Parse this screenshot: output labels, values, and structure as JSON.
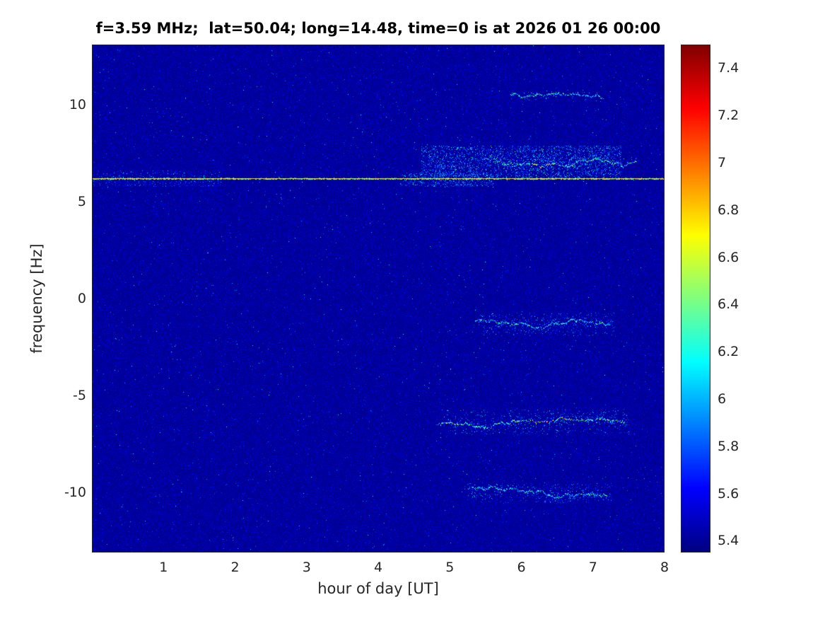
{
  "title": "f=3.59 MHz;  lat=50.04; long=14.48, time=0 is at 2026 01 26 00:00",
  "axes": {
    "xlabel": "hour of day [UT]",
    "ylabel": "frequency [Hz]",
    "x_ticks": [
      "1",
      "2",
      "3",
      "4",
      "5",
      "6",
      "7",
      "8"
    ],
    "y_ticks": [
      "10",
      "5",
      "0",
      "-5",
      "-10"
    ]
  },
  "colorbar": {
    "ticks": [
      "7.4",
      "7.2",
      "7",
      "6.8",
      "6.6",
      "6.4",
      "6.2",
      "6",
      "5.8",
      "5.6",
      "5.4"
    ],
    "colormap": "jet"
  },
  "chart_data": {
    "type": "heatmap",
    "title": "f=3.59 MHz;  lat=50.04; long=14.48, time=0 is at 2026 01 26 00:00",
    "xlabel": "hour of day [UT]",
    "ylabel": "frequency [Hz]",
    "xlim": [
      0,
      8
    ],
    "ylim": [
      -13.1,
      13.1
    ],
    "clim": [
      5.35,
      7.5
    ],
    "colormap": "jet",
    "colorbar_ticks": [
      5.4,
      5.6,
      5.8,
      6,
      6.2,
      6.4,
      6.6,
      6.8,
      7,
      7.2,
      7.4
    ],
    "noise_background": {
      "base_level": 5.37,
      "exp_mean": 0.05,
      "spike_prob": 0.004,
      "spike_min": 5.6,
      "spike_max": 6.35
    },
    "carrier_line": {
      "freq_hz": 6.2,
      "hour_start": 0,
      "hour_end": 8,
      "value_range": [
        6.5,
        6.85
      ]
    },
    "doppler_traces": [
      {
        "name": "upper-trace-10.5Hz",
        "hour_start": 5.85,
        "hour_end": 7.15,
        "freq_hz": 10.5,
        "wiggle_hz": 0.45,
        "value_range": [
          5.95,
          6.5
        ],
        "scatter": 0.35
      },
      {
        "name": "upper-trace-7Hz",
        "hour_start": 5.5,
        "hour_end": 7.6,
        "freq_hz": 7.0,
        "wiggle_hz": 0.55,
        "value_range": [
          5.95,
          6.6
        ],
        "scatter": 0.5,
        "hot_hours": [
          6.15,
          6.55
        ],
        "hot_value": 6.9
      },
      {
        "name": "lower-trace-minus1.3Hz",
        "hour_start": 5.35,
        "hour_end": 7.25,
        "freq_hz": -1.3,
        "wiggle_hz": 0.55,
        "value_range": [
          5.9,
          6.5
        ],
        "scatter": 0.4
      },
      {
        "name": "lower-trace-minus6.3Hz",
        "hour_start": 4.85,
        "hour_end": 7.45,
        "freq_hz": -6.3,
        "wiggle_hz": 0.55,
        "value_range": [
          6.0,
          6.75
        ],
        "scatter": 0.5,
        "hot_hours": [
          6.1,
          6.65
        ],
        "hot_value": 7.45
      },
      {
        "name": "lower-trace-minus10Hz",
        "hour_start": 5.25,
        "hour_end": 7.2,
        "freq_hz": -10.0,
        "wiggle_hz": 0.45,
        "value_range": [
          5.9,
          6.45
        ],
        "scatter": 0.4
      }
    ],
    "scatter_clouds": [
      {
        "hour_start": 4.6,
        "hour_end": 7.4,
        "freq_start": 6.2,
        "freq_end": 7.9,
        "count": 2400,
        "value_range": [
          5.7,
          6.55
        ]
      },
      {
        "hour_start": 0.0,
        "hour_end": 1.8,
        "freq_start": 5.8,
        "freq_end": 6.6,
        "count": 450,
        "value_range": [
          5.6,
          6.2
        ]
      },
      {
        "hour_start": 4.3,
        "hour_end": 5.6,
        "freq_start": 5.8,
        "freq_end": 6.5,
        "count": 450,
        "value_range": [
          5.7,
          6.4
        ]
      },
      {
        "hour_start": 5.4,
        "hour_end": 7.3,
        "freq_start": -1.9,
        "freq_end": -0.7,
        "count": 350,
        "value_range": [
          5.7,
          6.25
        ]
      },
      {
        "hour_start": 4.9,
        "hour_end": 7.5,
        "freq_start": -7.0,
        "freq_end": -5.7,
        "count": 500,
        "value_range": [
          5.7,
          6.35
        ]
      },
      {
        "hour_start": 5.2,
        "hour_end": 7.25,
        "freq_start": -10.5,
        "freq_end": -9.5,
        "count": 320,
        "value_range": [
          5.7,
          6.25
        ]
      }
    ]
  },
  "style": {
    "axes_text_color": "#262626",
    "title_color": "#000000",
    "figure_background": "#ffffff"
  }
}
